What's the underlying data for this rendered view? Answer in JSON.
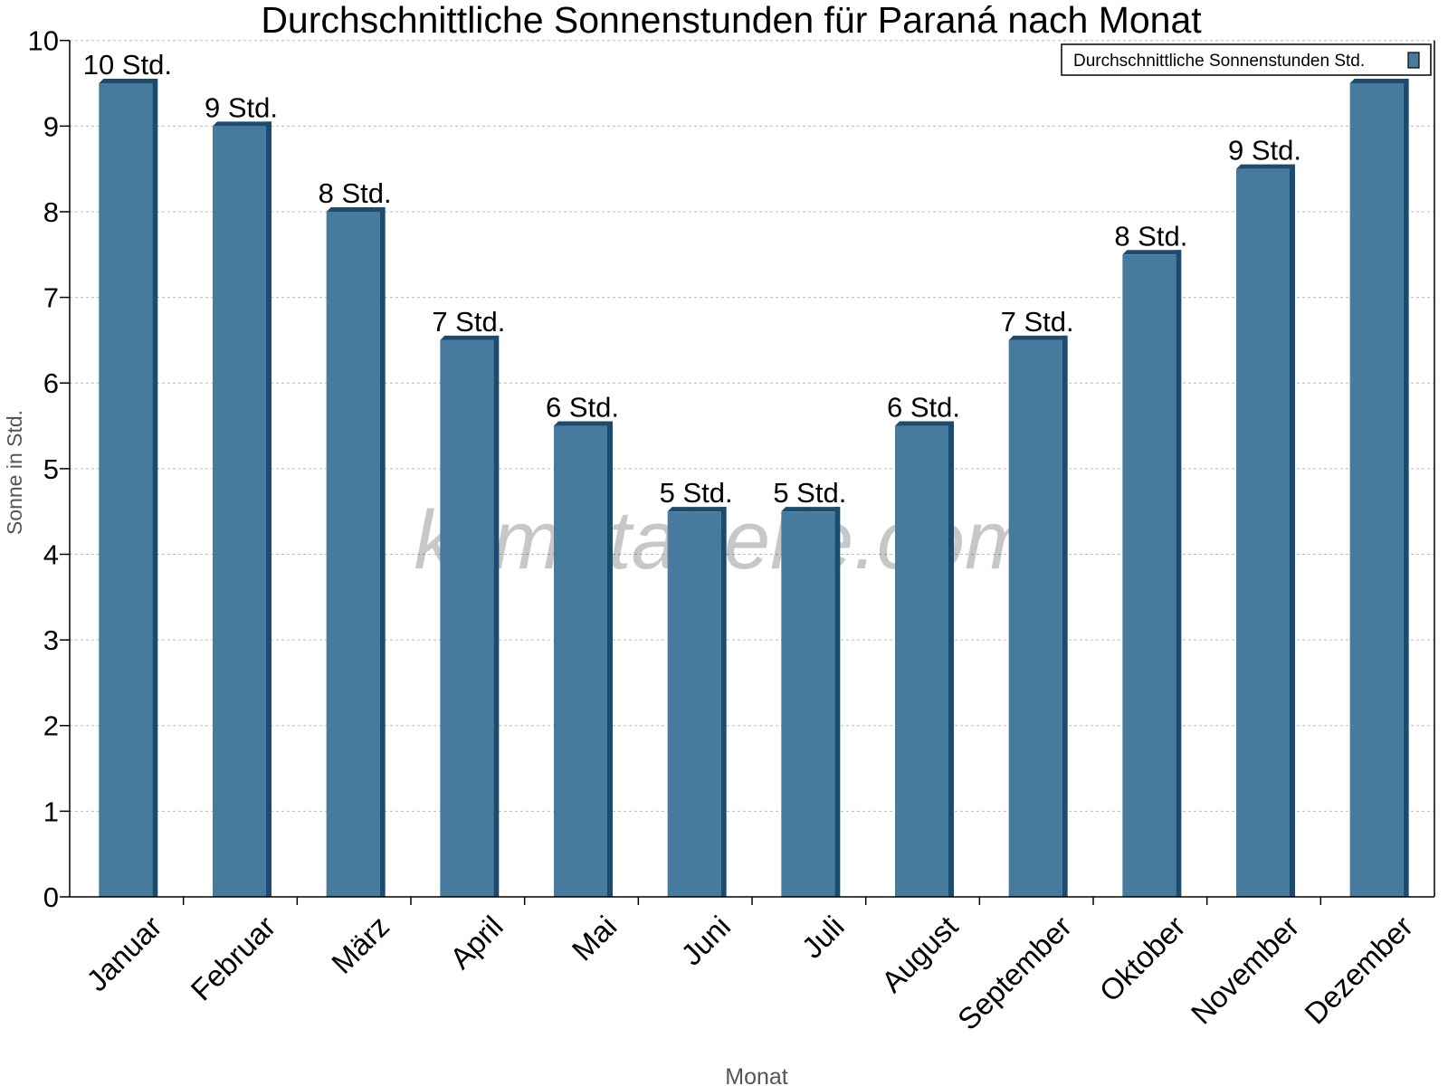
{
  "chart_data": {
    "type": "bar",
    "title": "Durchschnittliche Sonnenstunden für Paraná nach Monat",
    "xlabel": "Monat",
    "ylabel": "Sonne in Std.",
    "ylim": [
      0,
      10
    ],
    "yticks": [
      0,
      1,
      2,
      3,
      4,
      5,
      6,
      7,
      8,
      9,
      10
    ],
    "grid": true,
    "legend_placement": "top-right",
    "categories": [
      "Januar",
      "Februar",
      "März",
      "April",
      "Mai",
      "Juni",
      "Juli",
      "August",
      "September",
      "Oktober",
      "November",
      "Dezember"
    ],
    "series": [
      {
        "name": "Durchschnittliche Sonnenstunden Std.",
        "color": "#467b9d",
        "side_color": "#1b4b6e",
        "values": [
          9.5,
          9.0,
          8.0,
          6.5,
          5.5,
          4.5,
          4.5,
          5.5,
          6.5,
          7.5,
          8.5,
          9.5
        ],
        "labels": [
          "10 Std.",
          "9 Std.",
          "8 Std.",
          "7 Std.",
          "6 Std.",
          "5 Std.",
          "5 Std.",
          "6 Std.",
          "7 Std.",
          "8 Std.",
          "9 Std.",
          ""
        ]
      }
    ],
    "watermark": "klimatabelle.com"
  }
}
